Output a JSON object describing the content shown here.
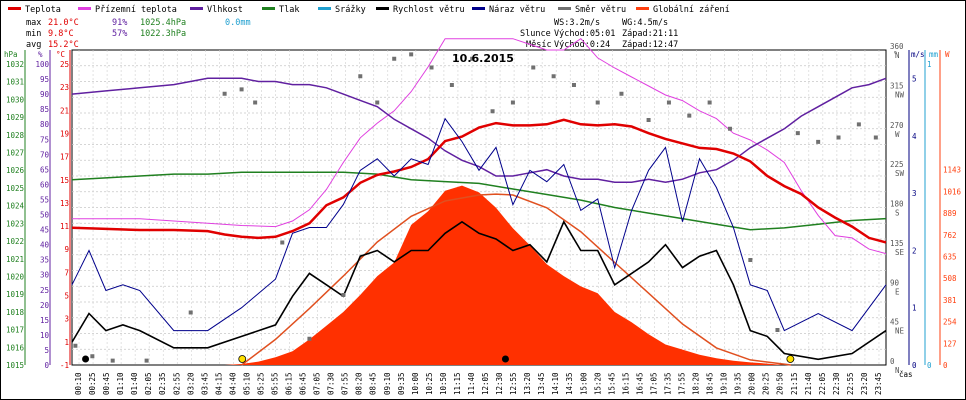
{
  "chart_data": {
    "type": "line",
    "title": "10.6.2015",
    "legend": [
      {
        "label": "Teplota",
        "color": "#e00000"
      },
      {
        "label": "Přízemní teplota",
        "color": "#e040e0"
      },
      {
        "label": "Vlhkost",
        "color": "#6020a0"
      },
      {
        "label": "Tlak",
        "color": "#208020"
      },
      {
        "label": "Srážky",
        "color": "#20a0d0"
      },
      {
        "label": "Rychlost větru",
        "color": "#000000"
      },
      {
        "label": "Náraz větru",
        "color": "#00008b"
      },
      {
        "label": "Směr větru",
        "color": "#707070"
      },
      {
        "label": "Globální záření",
        "color": "#ff4010"
      }
    ],
    "stats": {
      "max": {
        "label": "max",
        "temp": "21.0°C",
        "hum": "91%",
        "press": "1025.4hPa",
        "rain": "0.0mm"
      },
      "min": {
        "label": "min",
        "temp": "9.8°C",
        "hum": "57%",
        "press": "1022.3hPa"
      },
      "avg": {
        "label": "avg",
        "temp": "15.2°C"
      }
    },
    "info": {
      "ws": "WS:3.2m/s",
      "wg": "WG:4.5m/s",
      "sun_label": "Slunce",
      "sun_rise": "Východ:05:01",
      "sun_set": "Západ:21:11",
      "moon_label": "Měsíc",
      "moon_rise": "Východ:0:24",
      "moon_set": "Západ:12:47"
    },
    "axis_units": {
      "press": "hPa",
      "hum": "%",
      "temp": "°C",
      "dir": "°",
      "wind": "m/s",
      "rain": "mm",
      "rad": "W",
      "time": "čas"
    },
    "pressure_ticks": [
      "1032",
      "1031",
      "1030",
      "1029",
      "1028",
      "1027",
      "1026",
      "1025",
      "1024",
      "1023",
      "1022",
      "1021",
      "1020",
      "1019",
      "1018",
      "1017",
      "1016",
      "1015"
    ],
    "humidity_ticks": [
      "100",
      "95",
      "90",
      "85",
      "80",
      "75",
      "70",
      "65",
      "60",
      "55",
      "50",
      "45",
      "40",
      "35",
      "30",
      "25",
      "20",
      "15",
      "10",
      "5",
      "0"
    ],
    "temp_ticks": [
      "25",
      "23",
      "21",
      "19",
      "17",
      "15",
      "13",
      "11",
      "9",
      "7",
      "5",
      "3",
      "1",
      "-1"
    ],
    "dir_ticks": [
      {
        "deg": "360",
        "card": "N",
        "v": 360
      },
      {
        "deg": "315",
        "card": "NW",
        "v": 315
      },
      {
        "deg": "270",
        "card": "W",
        "v": 270
      },
      {
        "deg": "225",
        "card": "SW",
        "v": 225
      },
      {
        "deg": "180",
        "card": "S",
        "v": 180
      },
      {
        "deg": "135",
        "card": "SE",
        "v": 135
      },
      {
        "deg": "90",
        "card": "E",
        "v": 90
      },
      {
        "deg": "45",
        "card": "NE",
        "v": 45
      },
      {
        "deg": "0",
        "card": "N",
        "v": 0
      }
    ],
    "wind_ticks": [
      "5",
      "4",
      "3",
      "2",
      "1",
      "0"
    ],
    "rain_ticks": [
      "1",
      "0"
    ],
    "rad_ticks": [
      "1143",
      "1016",
      "889",
      "762",
      "635",
      "508",
      "381",
      "254",
      "127",
      "0"
    ],
    "x_ticks": [
      "00:10",
      "00:25",
      "00:45",
      "01:10",
      "01:40",
      "02:05",
      "02:35",
      "02:55",
      "03:20",
      "03:45",
      "04:15",
      "04:40",
      "05:10",
      "05:25",
      "05:55",
      "06:15",
      "06:45",
      "07:05",
      "07:30",
      "07:55",
      "08:20",
      "08:45",
      "09:10",
      "09:35",
      "10:00",
      "10:25",
      "10:50",
      "11:15",
      "11:40",
      "12:05",
      "12:30",
      "12:55",
      "13:20",
      "13:45",
      "14:10",
      "14:35",
      "15:00",
      "15:20",
      "15:45",
      "16:15",
      "16:45",
      "17:05",
      "17:35",
      "17:55",
      "18:20",
      "18:45",
      "19:10",
      "19:35",
      "20:00",
      "20:25",
      "20:50",
      "21:15",
      "21:40",
      "22:05",
      "22:30",
      "22:55",
      "23:20",
      "23:45"
    ],
    "x_range_hours": [
      0,
      24
    ],
    "ylim_temp": [
      -1,
      27
    ],
    "ylim_humidity": [
      0,
      100
    ],
    "ylim_pressure": [
      1015,
      1032
    ],
    "ylim_wind": [
      0,
      5.5
    ],
    "ylim_radiation": [
      0,
      1143
    ],
    "ylim_direction": [
      0,
      360
    ],
    "series": {
      "temperature": {
        "t": [
          0,
          1,
          2,
          3,
          4,
          4.5,
          5,
          5.5,
          6,
          6.5,
          7,
          7.5,
          8,
          8.5,
          9,
          9.5,
          10,
          10.5,
          11,
          11.5,
          12,
          12.5,
          13,
          13.5,
          14,
          14.5,
          15,
          15.5,
          16,
          16.5,
          17,
          17.5,
          18,
          18.5,
          19,
          19.5,
          20,
          20.5,
          21,
          21.5,
          22,
          22.5,
          23,
          23.5,
          24
        ],
        "v": [
          11.2,
          11.1,
          11,
          11,
          10.9,
          10.6,
          10.4,
          10.3,
          10.4,
          10.9,
          11.6,
          13.2,
          13.9,
          15.2,
          15.9,
          16.2,
          16.6,
          17.3,
          18.9,
          19.3,
          20.1,
          20.5,
          20.3,
          20.3,
          20.4,
          20.8,
          20.4,
          20.3,
          20.4,
          20.2,
          19.6,
          19.1,
          18.7,
          18.3,
          18.2,
          17.8,
          17.1,
          15.8,
          14.9,
          14.2,
          13,
          12.1,
          11.3,
          10.3,
          9.9
        ]
      },
      "ground_temperature": {
        "t": [
          0,
          1,
          2,
          3,
          4,
          5,
          6,
          6.5,
          7,
          7.5,
          8,
          8.5,
          9,
          9.5,
          10,
          10.5,
          11,
          11.5,
          12,
          12.5,
          13,
          13.5,
          14,
          14.5,
          15,
          15.5,
          16,
          16.5,
          17,
          17.5,
          18,
          18.5,
          19,
          19.5,
          20,
          20.5,
          21,
          21.5,
          22,
          22.5,
          23,
          23.5,
          24
        ],
        "v": [
          12,
          12,
          12,
          11.8,
          11.6,
          11.4,
          11.3,
          11.8,
          12.8,
          14.6,
          17,
          19.2,
          20.5,
          21.6,
          23.3,
          25.5,
          28,
          28,
          28,
          28,
          28,
          27.5,
          27,
          27,
          28,
          26.3,
          25.4,
          24.6,
          23.8,
          23,
          22.5,
          21.6,
          20.9,
          19.6,
          19,
          18.1,
          17,
          14.5,
          12.3,
          10.5,
          10.3,
          9.3,
          8.9
        ]
      },
      "humidity": {
        "t": [
          0,
          1,
          2,
          3,
          4,
          4.5,
          5,
          5.5,
          6,
          6.5,
          7,
          7.5,
          8,
          8.5,
          9,
          9.5,
          10,
          10.5,
          11,
          11.5,
          12,
          12.5,
          13,
          13.5,
          14,
          14.5,
          15,
          15.5,
          16,
          16.5,
          17,
          17.5,
          18,
          18.5,
          19,
          19.5,
          20,
          20.5,
          21,
          21.5,
          22,
          22.5,
          23,
          23.5,
          24
        ],
        "v": [
          86,
          87,
          88,
          89,
          91,
          91,
          91,
          90,
          90,
          89,
          89,
          88,
          86,
          84,
          82,
          78,
          75,
          72,
          68,
          65,
          63,
          60,
          60,
          61,
          62,
          60,
          59,
          59,
          58,
          58,
          59,
          58,
          59,
          61,
          62,
          65,
          69,
          72,
          75,
          79,
          82,
          85,
          88,
          89,
          91
        ]
      },
      "pressure": {
        "t": [
          0,
          1,
          2,
          3,
          4,
          5,
          6,
          7,
          8,
          9,
          10,
          11,
          12,
          13,
          14,
          15,
          16,
          17,
          18,
          19,
          20,
          21,
          22,
          23,
          24
        ],
        "v": [
          1025.0,
          1025.1,
          1025.2,
          1025.3,
          1025.3,
          1025.4,
          1025.4,
          1025.4,
          1025.4,
          1025.3,
          1025.0,
          1024.9,
          1024.8,
          1024.5,
          1024.2,
          1023.9,
          1023.5,
          1023.2,
          1022.9,
          1022.6,
          1022.3,
          1022.4,
          1022.6,
          1022.8,
          1022.9
        ]
      },
      "radiation": {
        "t": [
          4.5,
          5,
          5.5,
          6,
          6.5,
          7,
          7.5,
          8,
          8.5,
          9,
          9.5,
          10,
          10.5,
          11,
          11.5,
          12,
          12.5,
          13,
          13.5,
          14,
          14.5,
          15,
          15.5,
          16,
          16.5,
          17,
          17.5,
          18,
          18.5,
          19,
          19.5,
          20,
          20.5,
          21
        ],
        "v": [
          0,
          6,
          20,
          45,
          80,
          150,
          230,
          310,
          410,
          520,
          600,
          820,
          900,
          1020,
          1050,
          1010,
          920,
          800,
          700,
          590,
          520,
          460,
          420,
          310,
          250,
          180,
          120,
          90,
          60,
          40,
          25,
          15,
          8,
          0
        ]
      },
      "theoretical_radiation": {
        "t": [
          5.0,
          6,
          7,
          8,
          9,
          10,
          11,
          12,
          12.5,
          13,
          14,
          15,
          16,
          17,
          18,
          19,
          20,
          21.2
        ],
        "v": [
          0,
          150,
          330,
          520,
          720,
          870,
          960,
          995,
          1000,
          995,
          920,
          780,
          600,
          420,
          240,
          100,
          30,
          0
        ]
      },
      "wind_speed": {
        "t": [
          0,
          0.5,
          1,
          1.5,
          2,
          3,
          4,
          5,
          6,
          6.5,
          7,
          7.5,
          8,
          8.5,
          9,
          9.5,
          10,
          10.5,
          11,
          11.5,
          12,
          12.5,
          13,
          13.5,
          14,
          14.5,
          15,
          15.5,
          16,
          16.5,
          17,
          17.5,
          18,
          18.5,
          19,
          19.5,
          20,
          20.5,
          21,
          22,
          23,
          24
        ],
        "v": [
          0.4,
          0.9,
          0.6,
          0.7,
          0.6,
          0.3,
          0.3,
          0.5,
          0.7,
          1.2,
          1.6,
          1.4,
          1.2,
          1.9,
          2.0,
          1.8,
          2.0,
          2.0,
          2.3,
          2.5,
          2.3,
          2.2,
          2.0,
          2.1,
          1.8,
          2.5,
          2.0,
          2.0,
          1.4,
          1.6,
          1.8,
          2.1,
          1.7,
          1.9,
          2.0,
          1.4,
          0.6,
          0.5,
          0.2,
          0.1,
          0.2,
          0.6
        ]
      },
      "wind_gust": {
        "t": [
          0,
          0.5,
          1,
          1.5,
          2,
          3,
          4,
          5,
          6,
          6.5,
          7,
          7.5,
          8,
          8.5,
          9,
          9.5,
          10,
          10.5,
          11,
          11.5,
          12,
          12.5,
          13,
          13.5,
          14,
          14.5,
          15,
          15.5,
          16,
          16.5,
          17,
          17.5,
          18,
          18.5,
          19,
          19.5,
          20,
          20.5,
          21,
          22,
          23,
          24
        ],
        "v": [
          1.4,
          2.0,
          1.3,
          1.4,
          1.3,
          0.6,
          0.6,
          1.0,
          1.5,
          2.3,
          2.4,
          2.4,
          2.8,
          3.4,
          3.6,
          3.3,
          3.6,
          3.5,
          4.3,
          3.9,
          3.4,
          3.8,
          2.8,
          3.4,
          3.2,
          3.5,
          2.7,
          2.9,
          1.7,
          2.7,
          3.4,
          3.8,
          2.5,
          3.6,
          3.1,
          2.4,
          1.4,
          1.3,
          0.6,
          0.9,
          0.6,
          1.4
        ]
      },
      "wind_direction": {
        "t": [
          0.1,
          0.6,
          1.2,
          2.2,
          3.5,
          4.5,
          5.0,
          5.4,
          6.2,
          7.0,
          8.0,
          8.5,
          9.0,
          9.5,
          10.0,
          10.6,
          11.2,
          11.8,
          12.4,
          13.0,
          13.6,
          14.2,
          14.8,
          15.5,
          16.2,
          17.0,
          17.6,
          18.2,
          18.8,
          19.4,
          20.0,
          20.8,
          21.4,
          22.0,
          22.6,
          23.2,
          23.7
        ],
        "v": [
          22,
          10,
          5,
          5,
          60,
          310,
          315,
          300,
          140,
          30,
          80,
          330,
          300,
          350,
          355,
          340,
          320,
          350,
          290,
          300,
          340,
          330,
          320,
          300,
          310,
          280,
          300,
          285,
          300,
          270,
          120,
          40,
          265,
          255,
          260,
          275,
          260
        ]
      }
    }
  }
}
